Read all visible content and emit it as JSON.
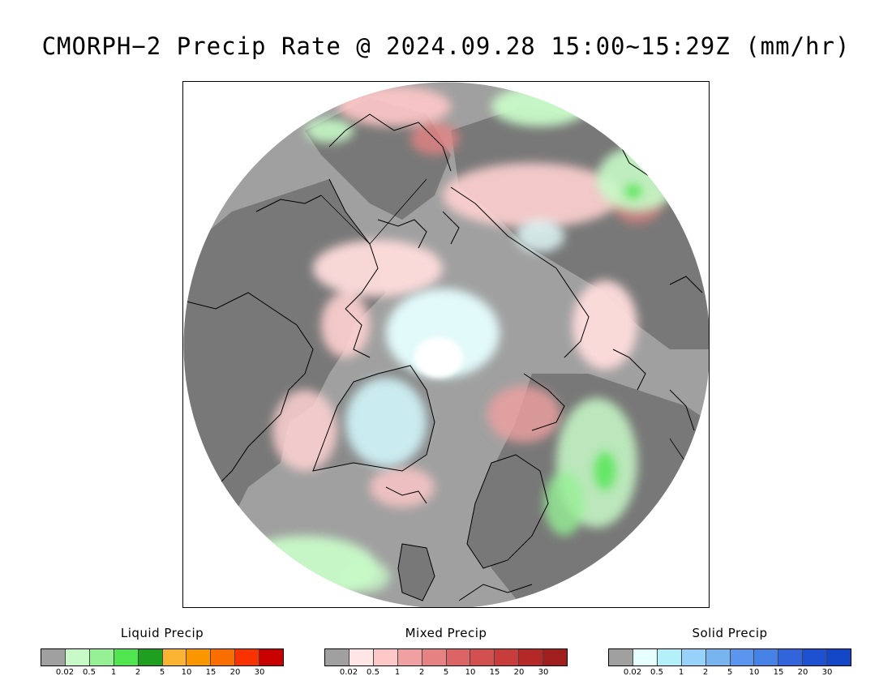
{
  "title": "CMORPH−2 Precip Rate @ 2024.09.28 15:00~15:29Z (mm/hr)",
  "colors": {
    "ocean_no_precip": "#a0a0a0",
    "land_no_precip": "#787878",
    "coastline": "#000000"
  },
  "legends": [
    {
      "title": "Liquid Precip",
      "colors": [
        "#a0a0a0",
        "#c8fac8",
        "#96f096",
        "#50e650",
        "#1ea01e",
        "#fab432",
        "#fa9600",
        "#fa6e00",
        "#fa3200",
        "#c80000"
      ],
      "ticks": [
        "0.02",
        "0.5",
        "1",
        "2",
        "5",
        "10",
        "15",
        "20",
        "30"
      ]
    },
    {
      "title": "Mixed Precip",
      "colors": [
        "#a0a0a0",
        "#ffe6e6",
        "#ffc8c8",
        "#f0a0a0",
        "#e68282",
        "#dc6464",
        "#d25050",
        "#c83c3c",
        "#b42828",
        "#a01e1e"
      ],
      "ticks": [
        "0.02",
        "0.5",
        "1",
        "2",
        "5",
        "10",
        "15",
        "20",
        "30"
      ]
    },
    {
      "title": "Solid Precip",
      "colors": [
        "#a0a0a0",
        "#e6ffff",
        "#b4f0fa",
        "#96d2fa",
        "#78b4f0",
        "#5a96f0",
        "#4682e6",
        "#3264dc",
        "#1e50d2",
        "#1446c8"
      ],
      "ticks": [
        "0.02",
        "0.5",
        "1",
        "2",
        "5",
        "10",
        "15",
        "20",
        "30"
      ]
    }
  ]
}
